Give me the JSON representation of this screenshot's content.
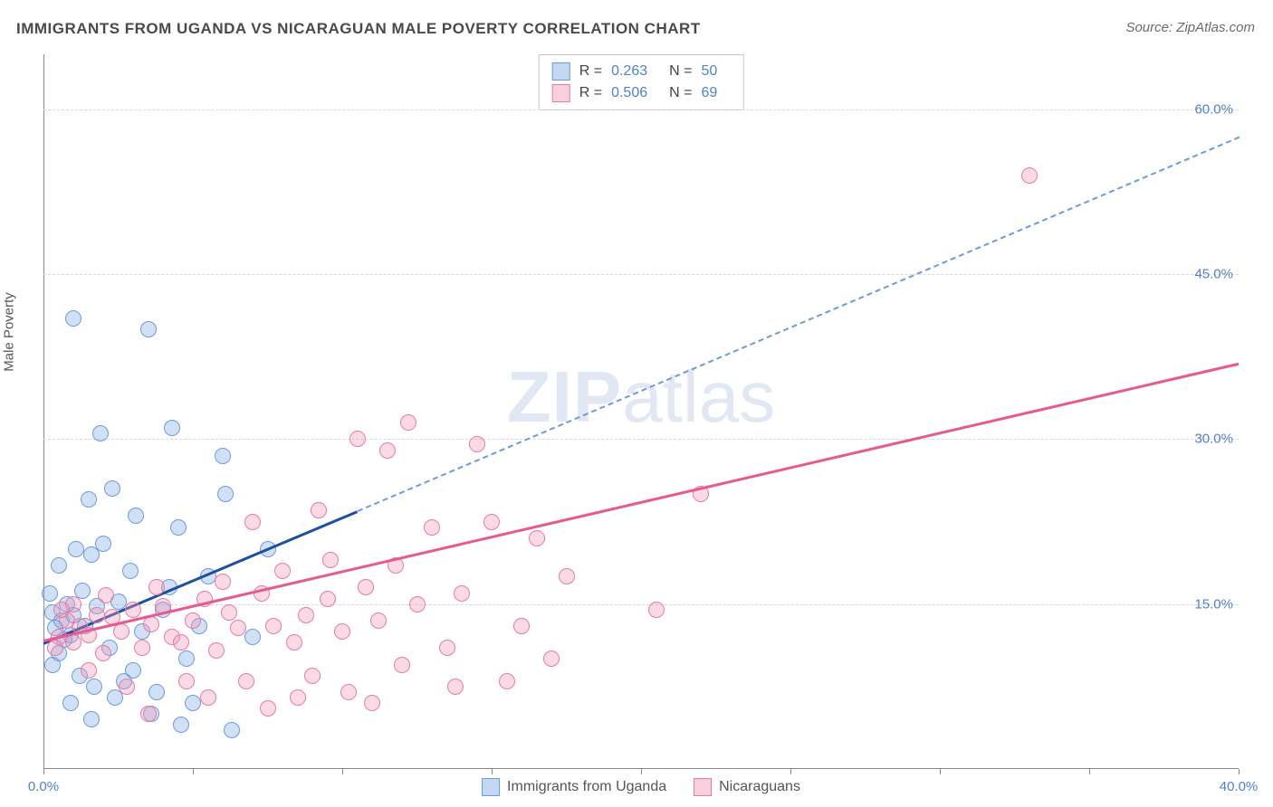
{
  "title": "IMMIGRANTS FROM UGANDA VS NICARAGUAN MALE POVERTY CORRELATION CHART",
  "source": "Source: ZipAtlas.com",
  "ylabel": "Male Poverty",
  "watermark_zip": "ZIP",
  "watermark_atlas": "atlas",
  "chart": {
    "type": "scatter",
    "xlim": [
      0,
      40
    ],
    "ylim": [
      0,
      65
    ],
    "x_ticks": [
      0,
      5,
      10,
      15,
      20,
      25,
      30,
      35,
      40
    ],
    "x_tick_labels": {
      "0": "0.0%",
      "40": "40.0%"
    },
    "y_grid": [
      15,
      30,
      45,
      60
    ],
    "y_grid_labels": [
      "15.0%",
      "30.0%",
      "45.0%",
      "60.0%"
    ],
    "background_color": "#ffffff",
    "grid_color": "#d8d8d8",
    "axis_label_color": "#4f7fd6",
    "series": [
      {
        "name": "Immigrants from Uganda",
        "color_fill": "rgba(124,169,227,0.35)",
        "color_stroke": "#6a9be0",
        "trend_color": "#1e50a2",
        "R": "0.263",
        "N": "50",
        "trend": {
          "x0": 0,
          "y0": 11.5,
          "x1": 10.5,
          "y1": 23.5,
          "x_solid_max": 10.5,
          "x_dash_max": 40,
          "y_dash_max": 57.5
        },
        "points": [
          [
            0.3,
            14.2
          ],
          [
            0.4,
            12.8
          ],
          [
            0.5,
            10.5
          ],
          [
            0.6,
            13.5
          ],
          [
            0.7,
            11.8
          ],
          [
            0.8,
            15.0
          ],
          [
            0.9,
            12.2
          ],
          [
            1.0,
            14.0
          ],
          [
            1.1,
            20.0
          ],
          [
            1.2,
            8.5
          ],
          [
            1.3,
            16.2
          ],
          [
            1.4,
            13.0
          ],
          [
            1.5,
            24.5
          ],
          [
            1.6,
            19.5
          ],
          [
            1.0,
            41.0
          ],
          [
            1.7,
            7.5
          ],
          [
            1.8,
            14.8
          ],
          [
            2.0,
            20.5
          ],
          [
            2.2,
            11.0
          ],
          [
            2.4,
            6.5
          ],
          [
            2.5,
            15.2
          ],
          [
            2.7,
            8.0
          ],
          [
            2.9,
            18.0
          ],
          [
            3.0,
            9.0
          ],
          [
            3.3,
            12.5
          ],
          [
            3.5,
            40.0
          ],
          [
            3.6,
            5.0
          ],
          [
            3.8,
            7.0
          ],
          [
            4.0,
            14.5
          ],
          [
            4.2,
            16.5
          ],
          [
            4.5,
            22.0
          ],
          [
            4.3,
            31.0
          ],
          [
            4.8,
            10.0
          ],
          [
            5.0,
            6.0
          ],
          [
            5.2,
            13.0
          ],
          [
            5.5,
            17.5
          ],
          [
            6.0,
            28.5
          ],
          [
            6.1,
            25.0
          ],
          [
            6.3,
            3.5
          ],
          [
            7.0,
            12.0
          ],
          [
            7.5,
            20.0
          ],
          [
            3.1,
            23.0
          ],
          [
            2.3,
            25.5
          ],
          [
            1.9,
            30.5
          ],
          [
            0.5,
            18.5
          ],
          [
            0.2,
            16.0
          ],
          [
            0.3,
            9.5
          ],
          [
            0.9,
            6.0
          ],
          [
            1.6,
            4.5
          ],
          [
            4.6,
            4.0
          ]
        ]
      },
      {
        "name": "Nicaraguans",
        "color_fill": "rgba(240,150,180,0.35)",
        "color_stroke": "#ea7aa5",
        "trend_color": "#e85a8f",
        "R": "0.506",
        "N": "69",
        "trend": {
          "x0": 0,
          "y0": 11.8,
          "x1": 40,
          "y1": 37.0,
          "x_solid_max": 40
        },
        "points": [
          [
            0.5,
            12.0
          ],
          [
            0.8,
            13.5
          ],
          [
            1.0,
            11.5
          ],
          [
            1.2,
            13.0
          ],
          [
            1.5,
            12.2
          ],
          [
            1.8,
            14.0
          ],
          [
            2.0,
            10.5
          ],
          [
            2.3,
            13.8
          ],
          [
            2.6,
            12.5
          ],
          [
            3.0,
            14.5
          ],
          [
            3.3,
            11.0
          ],
          [
            3.6,
            13.2
          ],
          [
            4.0,
            14.8
          ],
          [
            4.3,
            12.0
          ],
          [
            4.6,
            11.5
          ],
          [
            5.0,
            13.5
          ],
          [
            5.4,
            15.5
          ],
          [
            5.8,
            10.8
          ],
          [
            6.2,
            14.2
          ],
          [
            6.5,
            12.8
          ],
          [
            7.0,
            22.5
          ],
          [
            7.3,
            16.0
          ],
          [
            7.7,
            13.0
          ],
          [
            8.0,
            18.0
          ],
          [
            8.4,
            11.5
          ],
          [
            8.8,
            14.0
          ],
          [
            9.2,
            23.5
          ],
          [
            9.6,
            19.0
          ],
          [
            10.0,
            12.5
          ],
          [
            10.5,
            30.0
          ],
          [
            10.8,
            16.5
          ],
          [
            11.2,
            13.5
          ],
          [
            11.5,
            29.0
          ],
          [
            11.8,
            18.5
          ],
          [
            12.2,
            31.5
          ],
          [
            12.5,
            15.0
          ],
          [
            13.0,
            22.0
          ],
          [
            13.5,
            11.0
          ],
          [
            14.0,
            16.0
          ],
          [
            14.5,
            29.5
          ],
          [
            15.0,
            22.5
          ],
          [
            15.5,
            8.0
          ],
          [
            16.0,
            13.0
          ],
          [
            16.5,
            21.0
          ],
          [
            17.0,
            10.0
          ],
          [
            17.5,
            17.5
          ],
          [
            8.5,
            6.5
          ],
          [
            9.0,
            8.5
          ],
          [
            10.2,
            7.0
          ],
          [
            11.0,
            6.0
          ],
          [
            12.0,
            9.5
          ],
          [
            7.5,
            5.5
          ],
          [
            6.8,
            8.0
          ],
          [
            5.5,
            6.5
          ],
          [
            4.8,
            8.0
          ],
          [
            3.5,
            5.0
          ],
          [
            2.8,
            7.5
          ],
          [
            1.5,
            9.0
          ],
          [
            20.5,
            14.5
          ],
          [
            22.0,
            25.0
          ],
          [
            33.0,
            54.0
          ],
          [
            1.0,
            15.0
          ],
          [
            0.6,
            14.5
          ],
          [
            0.4,
            11.0
          ],
          [
            2.1,
            15.8
          ],
          [
            3.8,
            16.5
          ],
          [
            6.0,
            17.0
          ],
          [
            9.5,
            15.5
          ],
          [
            13.8,
            7.5
          ]
        ]
      }
    ]
  },
  "legend_top": {
    "rows": [
      {
        "swatch": "blue",
        "R_label": "R =",
        "R": "0.263",
        "N_label": "N =",
        "N": "50"
      },
      {
        "swatch": "pink",
        "R_label": "R =",
        "R": "0.506",
        "N_label": "N =",
        "N": "69"
      }
    ]
  },
  "legend_bottom": {
    "items": [
      {
        "swatch": "blue",
        "label": "Immigrants from Uganda"
      },
      {
        "swatch": "pink",
        "label": "Nicaraguans"
      }
    ]
  }
}
